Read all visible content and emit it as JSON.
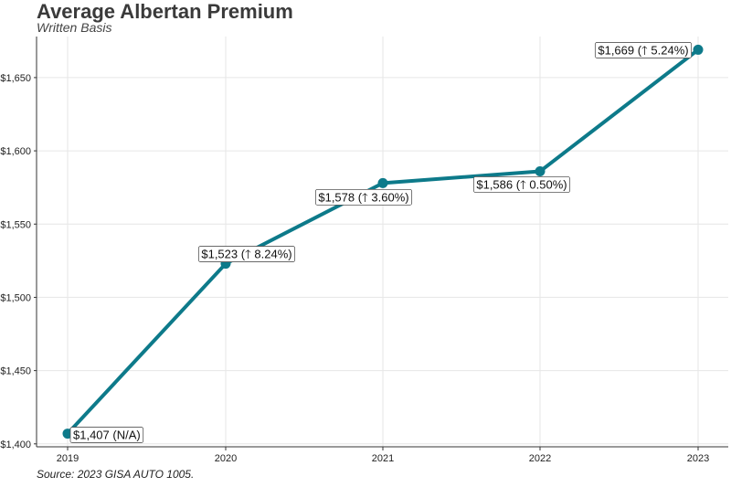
{
  "chart_data": {
    "type": "line",
    "title": "Average Albertan Premium",
    "subtitle": "Written Basis",
    "caption": "Source: 2023 GISA AUTO 1005.",
    "xlabel": "",
    "ylabel": "",
    "x": [
      "2019",
      "2020",
      "2021",
      "2022",
      "2023"
    ],
    "series": [
      {
        "values": [
          1407,
          1523,
          1578,
          1586,
          1669
        ]
      }
    ],
    "data_labels": [
      "$1,407 (N/A)",
      "$1,523 (🡑 8.24%)",
      "$1,578 (🡑 3.60%)",
      "$1,586 (🡑 0.50%)",
      "$1,669 (🡑 5.24%)"
    ],
    "y_ticks": [
      1400,
      1450,
      1500,
      1550,
      1600,
      1650
    ],
    "y_tick_labels": [
      "$1,400",
      "$1,450",
      "$1,500",
      "$1,550",
      "$1,600",
      "$1,650"
    ],
    "ylim": [
      1398,
      1678
    ],
    "grid": true,
    "line_color": "#0d7a8a",
    "grid_color": "#e6e6e6"
  }
}
